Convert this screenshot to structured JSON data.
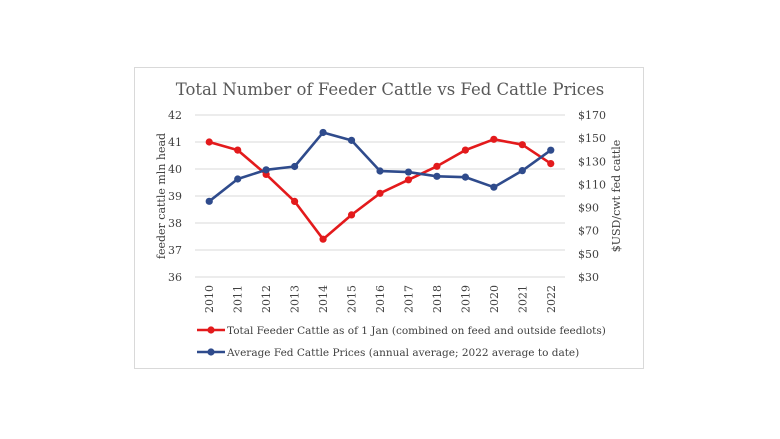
{
  "chart_data": {
    "type": "line",
    "title": "Total Number of Feeder Cattle vs Fed Cattle Prices",
    "x": [
      "2010",
      "2011",
      "2012",
      "2013",
      "2014",
      "2015",
      "2016",
      "2017",
      "2018",
      "2019",
      "2020",
      "2021",
      "2022"
    ],
    "y_left": {
      "label": "feeder cattle mln head",
      "lim": [
        36,
        42
      ],
      "ticks": [
        "36",
        "37",
        "38",
        "39",
        "40",
        "41",
        "42"
      ]
    },
    "y_right": {
      "label": "$USD/cwt fed cattle",
      "lim": [
        30,
        170
      ],
      "ticks": [
        "$30",
        "$50",
        "$70",
        "$90",
        "$110",
        "$130",
        "$150",
        "$170"
      ]
    },
    "grid": "horizontal",
    "legend_position": "bottom",
    "series": [
      {
        "name": "Total Feeder Cattle as of 1 Jan  (combined on feed and outside feedlots)",
        "axis": "left",
        "color": "#e31a1c",
        "values": [
          41.0,
          40.7,
          39.8,
          38.8,
          37.4,
          38.3,
          39.1,
          39.6,
          40.1,
          40.7,
          41.1,
          40.9,
          40.2
        ]
      },
      {
        "name": "Average Fed Cattle Prices (annual average; 2022 average to date)",
        "axis": "right",
        "color": "#2f4b8c",
        "values": [
          95.4,
          114.7,
          122.6,
          125.5,
          154.9,
          148.1,
          121.6,
          120.7,
          117.0,
          116.3,
          107.6,
          121.9,
          139.6
        ]
      }
    ]
  }
}
